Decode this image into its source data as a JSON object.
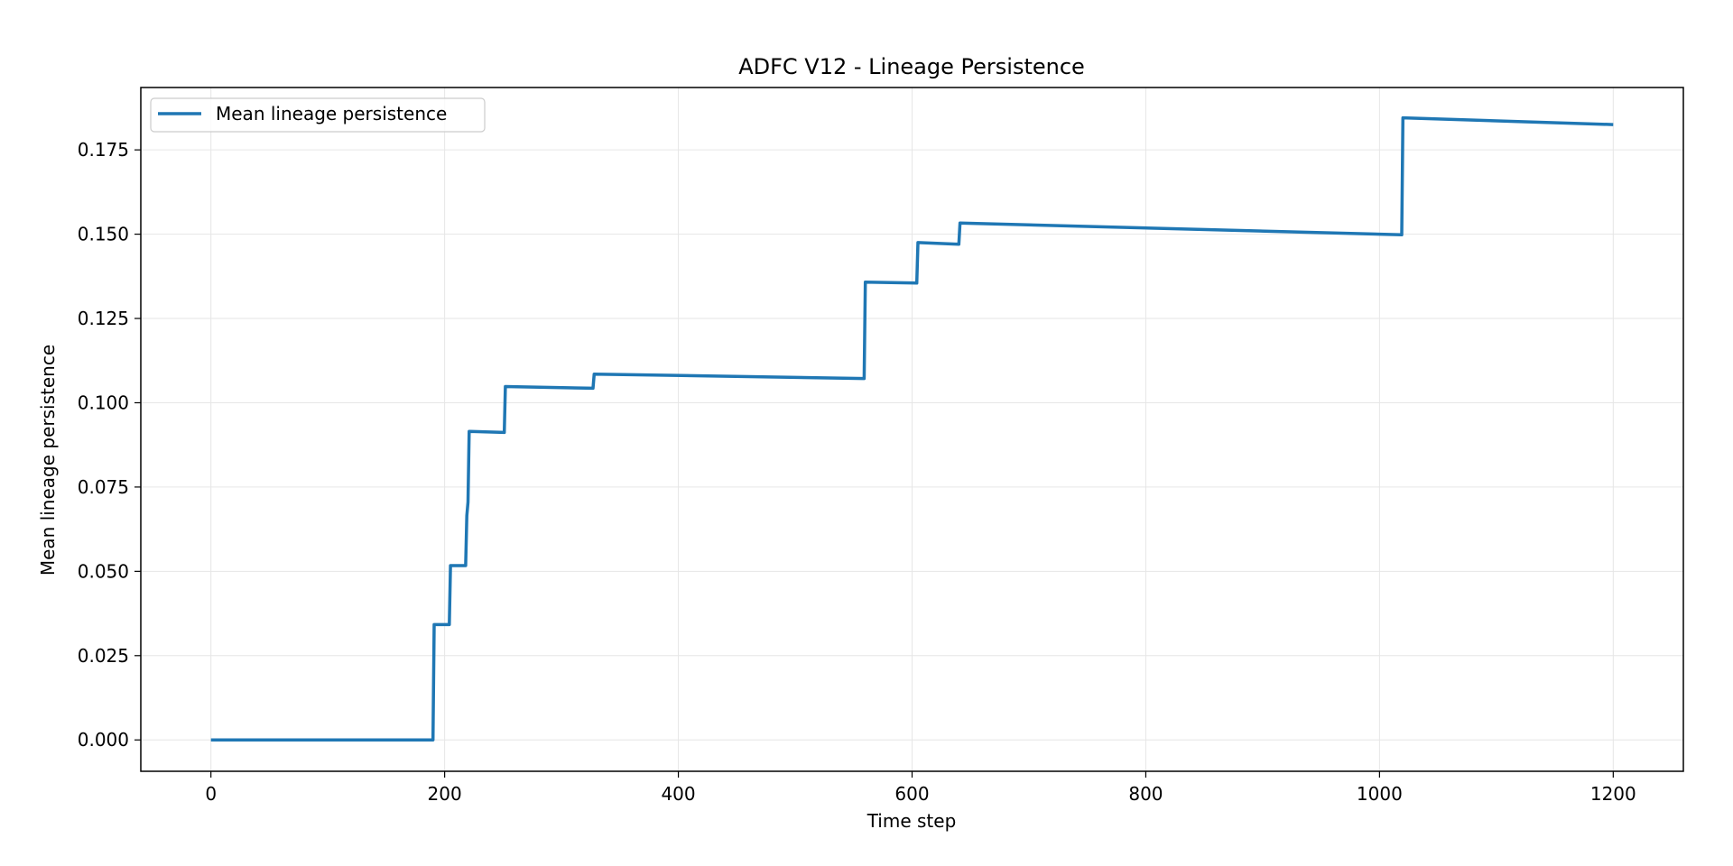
{
  "chart_data": {
    "type": "line",
    "title": "ADFC V12 - Lineage Persistence",
    "xlabel": "Time step",
    "ylabel": "Mean lineage persistence",
    "xlim": [
      -60,
      1260
    ],
    "ylim": [
      -0.0093,
      0.1935
    ],
    "xticks": [
      0,
      200,
      400,
      600,
      800,
      1000,
      1200
    ],
    "yticks": [
      0.0,
      0.025,
      0.05,
      0.075,
      0.1,
      0.125,
      0.15,
      0.175
    ],
    "xtick_labels": [
      "0",
      "200",
      "400",
      "600",
      "800",
      "1000",
      "1200"
    ],
    "ytick_labels": [
      "0.000",
      "0.025",
      "0.050",
      "0.075",
      "0.100",
      "0.125",
      "0.150",
      "0.175"
    ],
    "grid": true,
    "legend_position": "top-left",
    "series": [
      {
        "name": "Mean lineage persistence",
        "color": "#1f77b4",
        "x": [
          0,
          190,
          191,
          204,
          205,
          218,
          219,
          220,
          221,
          222,
          251,
          252,
          327,
          328,
          559,
          560,
          604,
          605,
          640,
          641,
          1019,
          1020,
          1200
        ],
        "y": [
          0.0,
          0.0,
          0.0342,
          0.0342,
          0.0517,
          0.0517,
          0.0665,
          0.0705,
          0.0915,
          0.0915,
          0.0912,
          0.1048,
          0.1043,
          0.1085,
          0.1072,
          0.1358,
          0.1355,
          0.1475,
          0.147,
          0.1533,
          0.1498,
          0.1845,
          0.1825
        ]
      }
    ]
  }
}
